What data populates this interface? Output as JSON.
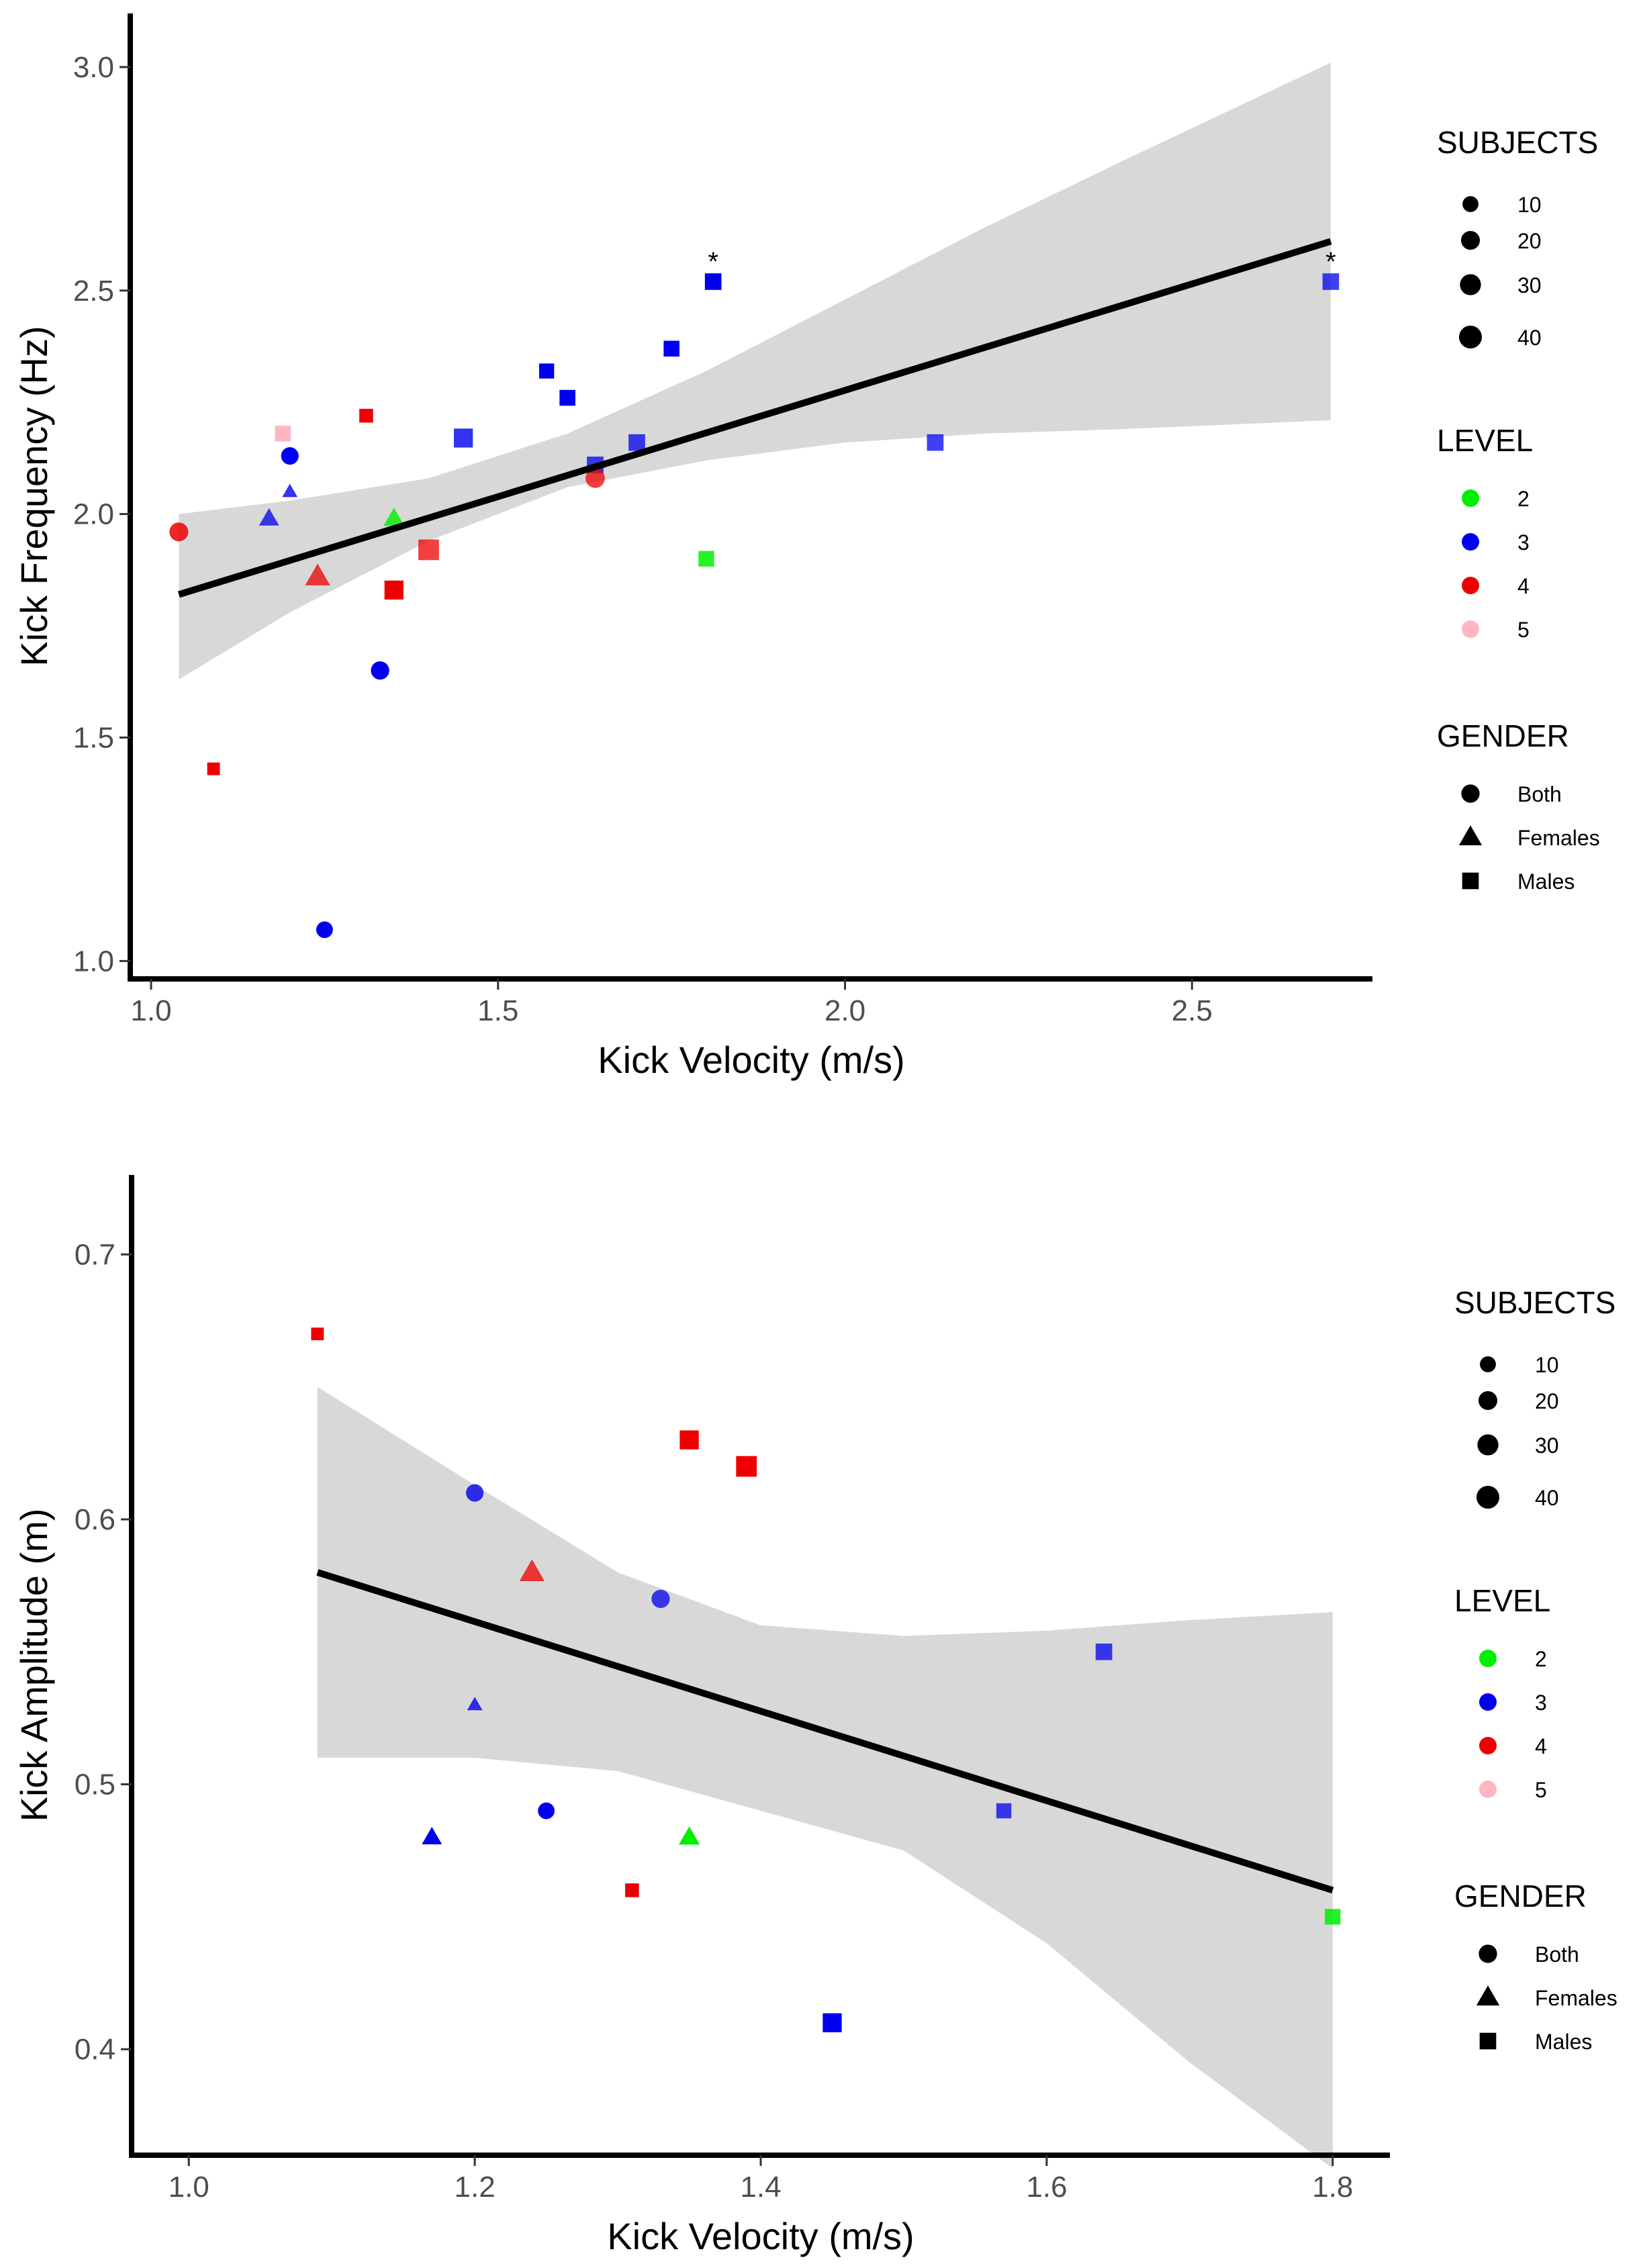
{
  "chart_data": [
    {
      "type": "scatter",
      "panel": "top",
      "xlabel": "Kick Velocity (m/s)",
      "ylabel": "Kick Frequency (Hz)",
      "xlim": [
        0.97,
        2.76
      ],
      "ylim": [
        0.96,
        3.12
      ],
      "xticks": [
        1.0,
        1.5,
        2.0,
        2.5
      ],
      "xtick_labels": [
        "1.0",
        "1.5",
        "2.0",
        "2.5"
      ],
      "yticks": [
        1.0,
        1.5,
        2.0,
        2.5,
        3.0
      ],
      "ytick_labels": [
        "1.0",
        "1.5",
        "2.0",
        "2.5",
        "3.0"
      ],
      "grid": false,
      "regression": {
        "x": [
          1.04,
          2.7
        ],
        "y": [
          1.82,
          2.61
        ]
      },
      "confidence_band": {
        "x": [
          1.04,
          1.2,
          1.4,
          1.6,
          1.8,
          2.0,
          2.2,
          2.4,
          2.55,
          2.7
        ],
        "lower": [
          1.63,
          1.78,
          1.94,
          2.06,
          2.12,
          2.16,
          2.18,
          2.19,
          2.2,
          2.21
        ],
        "upper": [
          2.0,
          2.03,
          2.08,
          2.18,
          2.32,
          2.48,
          2.64,
          2.79,
          2.9,
          3.01
        ]
      },
      "points": [
        {
          "x": 1.04,
          "y": 1.96,
          "level": 4,
          "gender": "Both",
          "subjects": 20,
          "alpha": 0.85
        },
        {
          "x": 1.09,
          "y": 1.43,
          "level": 4,
          "gender": "Males",
          "subjects": 5,
          "alpha": 1
        },
        {
          "x": 1.17,
          "y": 1.99,
          "level": 3,
          "gender": "Females",
          "subjects": 10,
          "alpha": 0.75
        },
        {
          "x": 1.19,
          "y": 2.18,
          "level": 5,
          "gender": "Males",
          "subjects": 15,
          "alpha": 1
        },
        {
          "x": 1.2,
          "y": 2.13,
          "level": 3,
          "gender": "Both",
          "subjects": 15,
          "alpha": 1
        },
        {
          "x": 1.2,
          "y": 2.05,
          "level": 3,
          "gender": "Females",
          "subjects": 2,
          "alpha": 0.8
        },
        {
          "x": 1.24,
          "y": 1.86,
          "level": 4,
          "gender": "Females",
          "subjects": 25,
          "alpha": 0.75
        },
        {
          "x": 1.25,
          "y": 1.07,
          "level": 3,
          "gender": "Both",
          "subjects": 12,
          "alpha": 1
        },
        {
          "x": 1.31,
          "y": 2.22,
          "level": 4,
          "gender": "Males",
          "subjects": 8,
          "alpha": 1
        },
        {
          "x": 1.33,
          "y": 1.65,
          "level": 3,
          "gender": "Both",
          "subjects": 18,
          "alpha": 1
        },
        {
          "x": 1.35,
          "y": 1.99,
          "level": 2,
          "gender": "Females",
          "subjects": 12,
          "alpha": 0.8
        },
        {
          "x": 1.35,
          "y": 1.83,
          "level": 4,
          "gender": "Males",
          "subjects": 30,
          "alpha": 1
        },
        {
          "x": 1.4,
          "y": 1.92,
          "level": 4,
          "gender": "Males",
          "subjects": 40,
          "alpha": 0.75
        },
        {
          "x": 1.45,
          "y": 2.17,
          "level": 3,
          "gender": "Males",
          "subjects": 30,
          "alpha": 0.8
        },
        {
          "x": 1.57,
          "y": 2.32,
          "level": 3,
          "gender": "Males",
          "subjects": 12,
          "alpha": 1
        },
        {
          "x": 1.6,
          "y": 2.26,
          "level": 3,
          "gender": "Males",
          "subjects": 15,
          "alpha": 1
        },
        {
          "x": 1.64,
          "y": 2.11,
          "level": 3,
          "gender": "Males",
          "subjects": 18,
          "alpha": 0.75
        },
        {
          "x": 1.64,
          "y": 2.08,
          "level": 4,
          "gender": "Both",
          "subjects": 22,
          "alpha": 0.75
        },
        {
          "x": 1.7,
          "y": 2.16,
          "level": 3,
          "gender": "Males",
          "subjects": 18,
          "alpha": 0.75
        },
        {
          "x": 1.75,
          "y": 2.37,
          "level": 3,
          "gender": "Males",
          "subjects": 15,
          "alpha": 1
        },
        {
          "x": 1.8,
          "y": 1.9,
          "level": 2,
          "gender": "Males",
          "subjects": 14,
          "alpha": 0.85
        },
        {
          "x": 1.81,
          "y": 2.52,
          "level": 3,
          "gender": "Males",
          "subjects": 18,
          "alpha": 1,
          "annotation": "*"
        },
        {
          "x": 2.13,
          "y": 2.16,
          "level": 3,
          "gender": "Males",
          "subjects": 18,
          "alpha": 0.75
        },
        {
          "x": 2.7,
          "y": 2.52,
          "level": 3,
          "gender": "Males",
          "subjects": 18,
          "alpha": 0.75,
          "annotation": "*"
        }
      ]
    },
    {
      "type": "scatter",
      "panel": "bottom",
      "xlabel": "Kick Velocity (m/s)",
      "ylabel": "Kick Amplitude (m)",
      "xlim": [
        0.96,
        1.84
      ],
      "ylim": [
        0.36,
        0.73
      ],
      "xticks": [
        1.0,
        1.2,
        1.4,
        1.6,
        1.8
      ],
      "xtick_labels": [
        "1.0",
        "1.2",
        "1.4",
        "1.6",
        "1.8"
      ],
      "yticks": [
        0.4,
        0.5,
        0.6,
        0.7
      ],
      "ytick_labels": [
        "0.4",
        "0.5",
        "0.6",
        "0.7"
      ],
      "grid": false,
      "regression": {
        "x": [
          1.09,
          1.8
        ],
        "y": [
          0.58,
          0.46
        ]
      },
      "confidence_band": {
        "x": [
          1.09,
          1.2,
          1.3,
          1.4,
          1.5,
          1.6,
          1.7,
          1.8
        ],
        "lower": [
          0.51,
          0.51,
          0.505,
          0.49,
          0.475,
          0.44,
          0.395,
          0.355
        ],
        "upper": [
          0.65,
          0.613,
          0.58,
          0.56,
          0.556,
          0.558,
          0.562,
          0.565
        ]
      },
      "points": [
        {
          "x": 1.09,
          "y": 0.67,
          "level": 4,
          "gender": "Males",
          "subjects": 5,
          "alpha": 1
        },
        {
          "x": 1.17,
          "y": 0.48,
          "level": 3,
          "gender": "Females",
          "subjects": 10,
          "alpha": 1
        },
        {
          "x": 1.2,
          "y": 0.61,
          "level": 3,
          "gender": "Both",
          "subjects": 15,
          "alpha": 0.8
        },
        {
          "x": 1.2,
          "y": 0.53,
          "level": 3,
          "gender": "Females",
          "subjects": 2,
          "alpha": 0.8
        },
        {
          "x": 1.24,
          "y": 0.58,
          "level": 4,
          "gender": "Females",
          "subjects": 25,
          "alpha": 0.75
        },
        {
          "x": 1.25,
          "y": 0.49,
          "level": 3,
          "gender": "Both",
          "subjects": 12,
          "alpha": 1
        },
        {
          "x": 1.31,
          "y": 0.46,
          "level": 4,
          "gender": "Males",
          "subjects": 8,
          "alpha": 1
        },
        {
          "x": 1.33,
          "y": 0.57,
          "level": 3,
          "gender": "Both",
          "subjects": 18,
          "alpha": 0.75
        },
        {
          "x": 1.35,
          "y": 0.63,
          "level": 4,
          "gender": "Males",
          "subjects": 30,
          "alpha": 1
        },
        {
          "x": 1.35,
          "y": 0.48,
          "level": 2,
          "gender": "Females",
          "subjects": 12,
          "alpha": 1
        },
        {
          "x": 1.39,
          "y": 0.62,
          "level": 4,
          "gender": "Males",
          "subjects": 40,
          "alpha": 1
        },
        {
          "x": 1.45,
          "y": 0.41,
          "level": 3,
          "gender": "Males",
          "subjects": 30,
          "alpha": 1
        },
        {
          "x": 1.57,
          "y": 0.49,
          "level": 3,
          "gender": "Males",
          "subjects": 12,
          "alpha": 0.75
        },
        {
          "x": 1.64,
          "y": 0.55,
          "level": 3,
          "gender": "Males",
          "subjects": 18,
          "alpha": 0.75
        },
        {
          "x": 1.8,
          "y": 0.45,
          "level": 2,
          "gender": "Males",
          "subjects": 14,
          "alpha": 0.85
        }
      ]
    }
  ],
  "legend": {
    "subjects_title": "SUBJECTS",
    "subjects_items": [
      {
        "label": "10",
        "value": 10
      },
      {
        "label": "20",
        "value": 20
      },
      {
        "label": "30",
        "value": 30
      },
      {
        "label": "40",
        "value": 40
      }
    ],
    "level_title": "LEVEL",
    "level_items": [
      {
        "label": "2",
        "level": 2
      },
      {
        "label": "3",
        "level": 3
      },
      {
        "label": "4",
        "level": 4
      },
      {
        "label": "5",
        "level": 5
      }
    ],
    "gender_title": "GENDER",
    "gender_items": [
      {
        "label": "Both",
        "shape": "circle"
      },
      {
        "label": "Females",
        "shape": "triangle"
      },
      {
        "label": "Males",
        "shape": "square"
      }
    ]
  },
  "colors": {
    "level_2": "#00ee00",
    "level_3": "#0000ee",
    "level_4": "#ee0000",
    "level_5": "#ffb6c1",
    "band": "#d4d4d4",
    "line": "#000000",
    "axis": "#000000",
    "tick_text": "#4d4d4d"
  }
}
